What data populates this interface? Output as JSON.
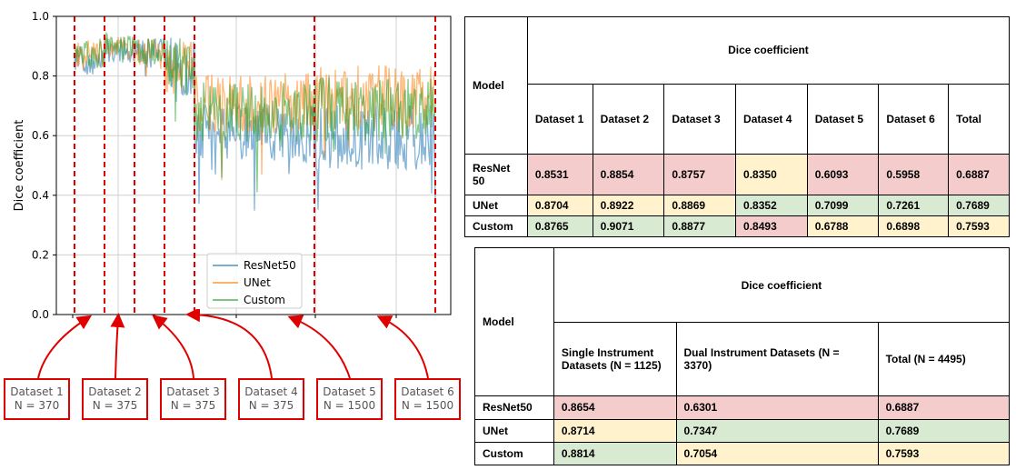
{
  "chart_data": {
    "type": "line",
    "ylabel": "Dice coefficient",
    "ylim": [
      0.0,
      1.0
    ],
    "yticks": [
      "0.0",
      "0.2",
      "0.4",
      "0.6",
      "0.8",
      "1.0"
    ],
    "grid": true,
    "legend_placement": "lower-center",
    "series": [
      {
        "name": "ResNet50",
        "color": "#1f77b4"
      },
      {
        "name": "UNet",
        "color": "#ff7f0e"
      },
      {
        "name": "Custom",
        "color": "#2ca02c"
      }
    ],
    "segments": [
      {
        "label": "Dataset 1",
        "n": "N = 370",
        "ResNet50": 0.8531,
        "UNet": 0.8704,
        "Custom": 0.8765
      },
      {
        "label": "Dataset 2",
        "n": "N = 375",
        "ResNet50": 0.8854,
        "UNet": 0.8922,
        "Custom": 0.9071
      },
      {
        "label": "Dataset 3",
        "n": "N = 375",
        "ResNet50": 0.8757,
        "UNet": 0.8869,
        "Custom": 0.8877
      },
      {
        "label": "Dataset 4",
        "n": "N = 375",
        "ResNet50": 0.835,
        "UNet": 0.8352,
        "Custom": 0.8493
      },
      {
        "label": "Dataset 5",
        "n": "N = 1500",
        "ResNet50": 0.6093,
        "UNet": 0.7099,
        "Custom": 0.6788
      },
      {
        "label": "Dataset 6",
        "n": "N = 1500",
        "ResNet50": 0.5958,
        "UNet": 0.7261,
        "Custom": 0.6898
      }
    ]
  },
  "table1": {
    "model_header": "Model",
    "group_header": "Dice coefficient",
    "columns": [
      "Dataset 1",
      "Dataset 2",
      "Dataset 3",
      "Dataset 4",
      "Dataset 5",
      "Dataset 6",
      "Total"
    ],
    "rows": [
      {
        "model": "ResNet 50",
        "values": [
          "0.8531",
          "0.8854",
          "0.8757",
          "0.8350",
          "0.6093",
          "0.5958",
          "0.6887"
        ],
        "colors": [
          "red",
          "red",
          "red",
          "yellow",
          "red",
          "red",
          "red"
        ]
      },
      {
        "model": "UNet",
        "values": [
          "0.8704",
          "0.8922",
          "0.8869",
          "0.8352",
          "0.7099",
          "0.7261",
          "0.7689"
        ],
        "colors": [
          "yellow",
          "yellow",
          "yellow",
          "green",
          "green",
          "green",
          "green"
        ]
      },
      {
        "model": "Custom",
        "values": [
          "0.8765",
          "0.9071",
          "0.8877",
          "0.8493",
          "0.6788",
          "0.6898",
          "0.7593"
        ],
        "colors": [
          "green",
          "green",
          "green",
          "red",
          "yellow",
          "yellow",
          "yellow"
        ]
      }
    ]
  },
  "table2": {
    "model_header": "Model",
    "group_header": "Dice coefficient",
    "columns": [
      "Single Instrument Datasets (N = 1125)",
      "Dual Instrument Datasets (N = 3370)",
      "Total (N = 4495)"
    ],
    "rows": [
      {
        "model": "ResNet50",
        "values": [
          "0.8654",
          "0.6301",
          "0.6887"
        ],
        "colors": [
          "red",
          "red",
          "red"
        ]
      },
      {
        "model": "UNet",
        "values": [
          "0.8714",
          "0.7347",
          "0.7689"
        ],
        "colors": [
          "yellow",
          "green",
          "green"
        ]
      },
      {
        "model": "Custom",
        "values": [
          "0.8814",
          "0.7054",
          "0.7593"
        ],
        "colors": [
          "green",
          "yellow",
          "yellow"
        ]
      }
    ]
  }
}
